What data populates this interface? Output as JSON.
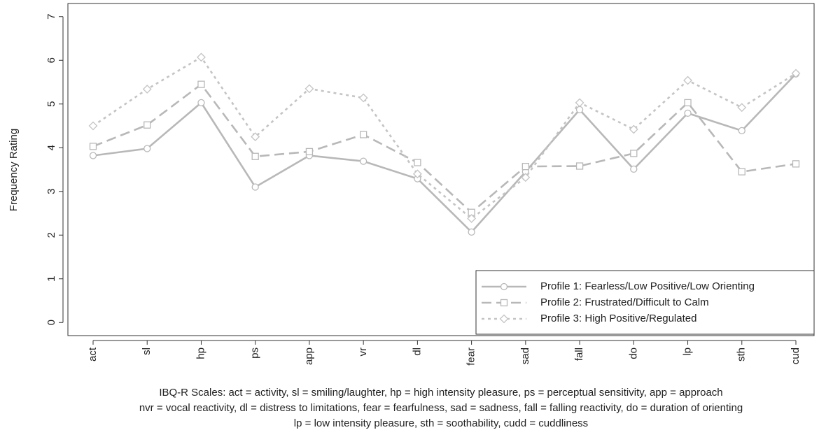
{
  "chart_data": {
    "type": "line",
    "y_label": "Frequency Rating",
    "categories": [
      "act",
      "sl",
      "hp",
      "ps",
      "app",
      "vr",
      "dl",
      "fear",
      "sad",
      "fall",
      "do",
      "lp",
      "sth",
      "cud"
    ],
    "series": [
      {
        "name": "Profile 1: Fearless/Low Positive/Low Orienting",
        "color": "#b8b8b8",
        "line_style": "solid",
        "marker": "circle",
        "values": [
          3.82,
          3.98,
          5.03,
          3.1,
          3.82,
          3.69,
          3.29,
          2.07,
          3.45,
          4.87,
          3.51,
          4.79,
          4.39,
          5.69
        ]
      },
      {
        "name": "Profile 2: Frustrated/Difficult to Calm",
        "color": "#b8b8b8",
        "line_style": "dashed",
        "marker": "square",
        "values": [
          4.03,
          4.52,
          5.45,
          3.8,
          3.91,
          4.3,
          3.66,
          2.52,
          3.57,
          3.58,
          3.87,
          5.03,
          3.45,
          3.63
        ]
      },
      {
        "name": "Profile 3: High Positive/Regulated",
        "color": "#c4c4c4",
        "line_style": "dotted",
        "marker": "diamond",
        "values": [
          4.5,
          5.34,
          6.07,
          4.25,
          5.35,
          5.14,
          3.4,
          2.38,
          3.32,
          5.03,
          4.42,
          5.54,
          4.92,
          5.7
        ]
      }
    ],
    "ylim": [
      -0.3,
      7.3
    ],
    "yticks": [
      0,
      1,
      2,
      3,
      4,
      5,
      6,
      7
    ],
    "legend": "bottom-right",
    "caption": [
      "IBQ-R Scales: act = activity, sl = smiling/laughter, hp = high intensity pleasure, ps = perceptual sensitivity, app = approach",
      "nvr = vocal reactivity, dl = distress to limitations, fear = fearfulness, sad = sadness, fall = falling reactivity, do = duration of orienting",
      "lp = low intensity pleasure, sth = soothability, cudd = cuddliness"
    ]
  }
}
